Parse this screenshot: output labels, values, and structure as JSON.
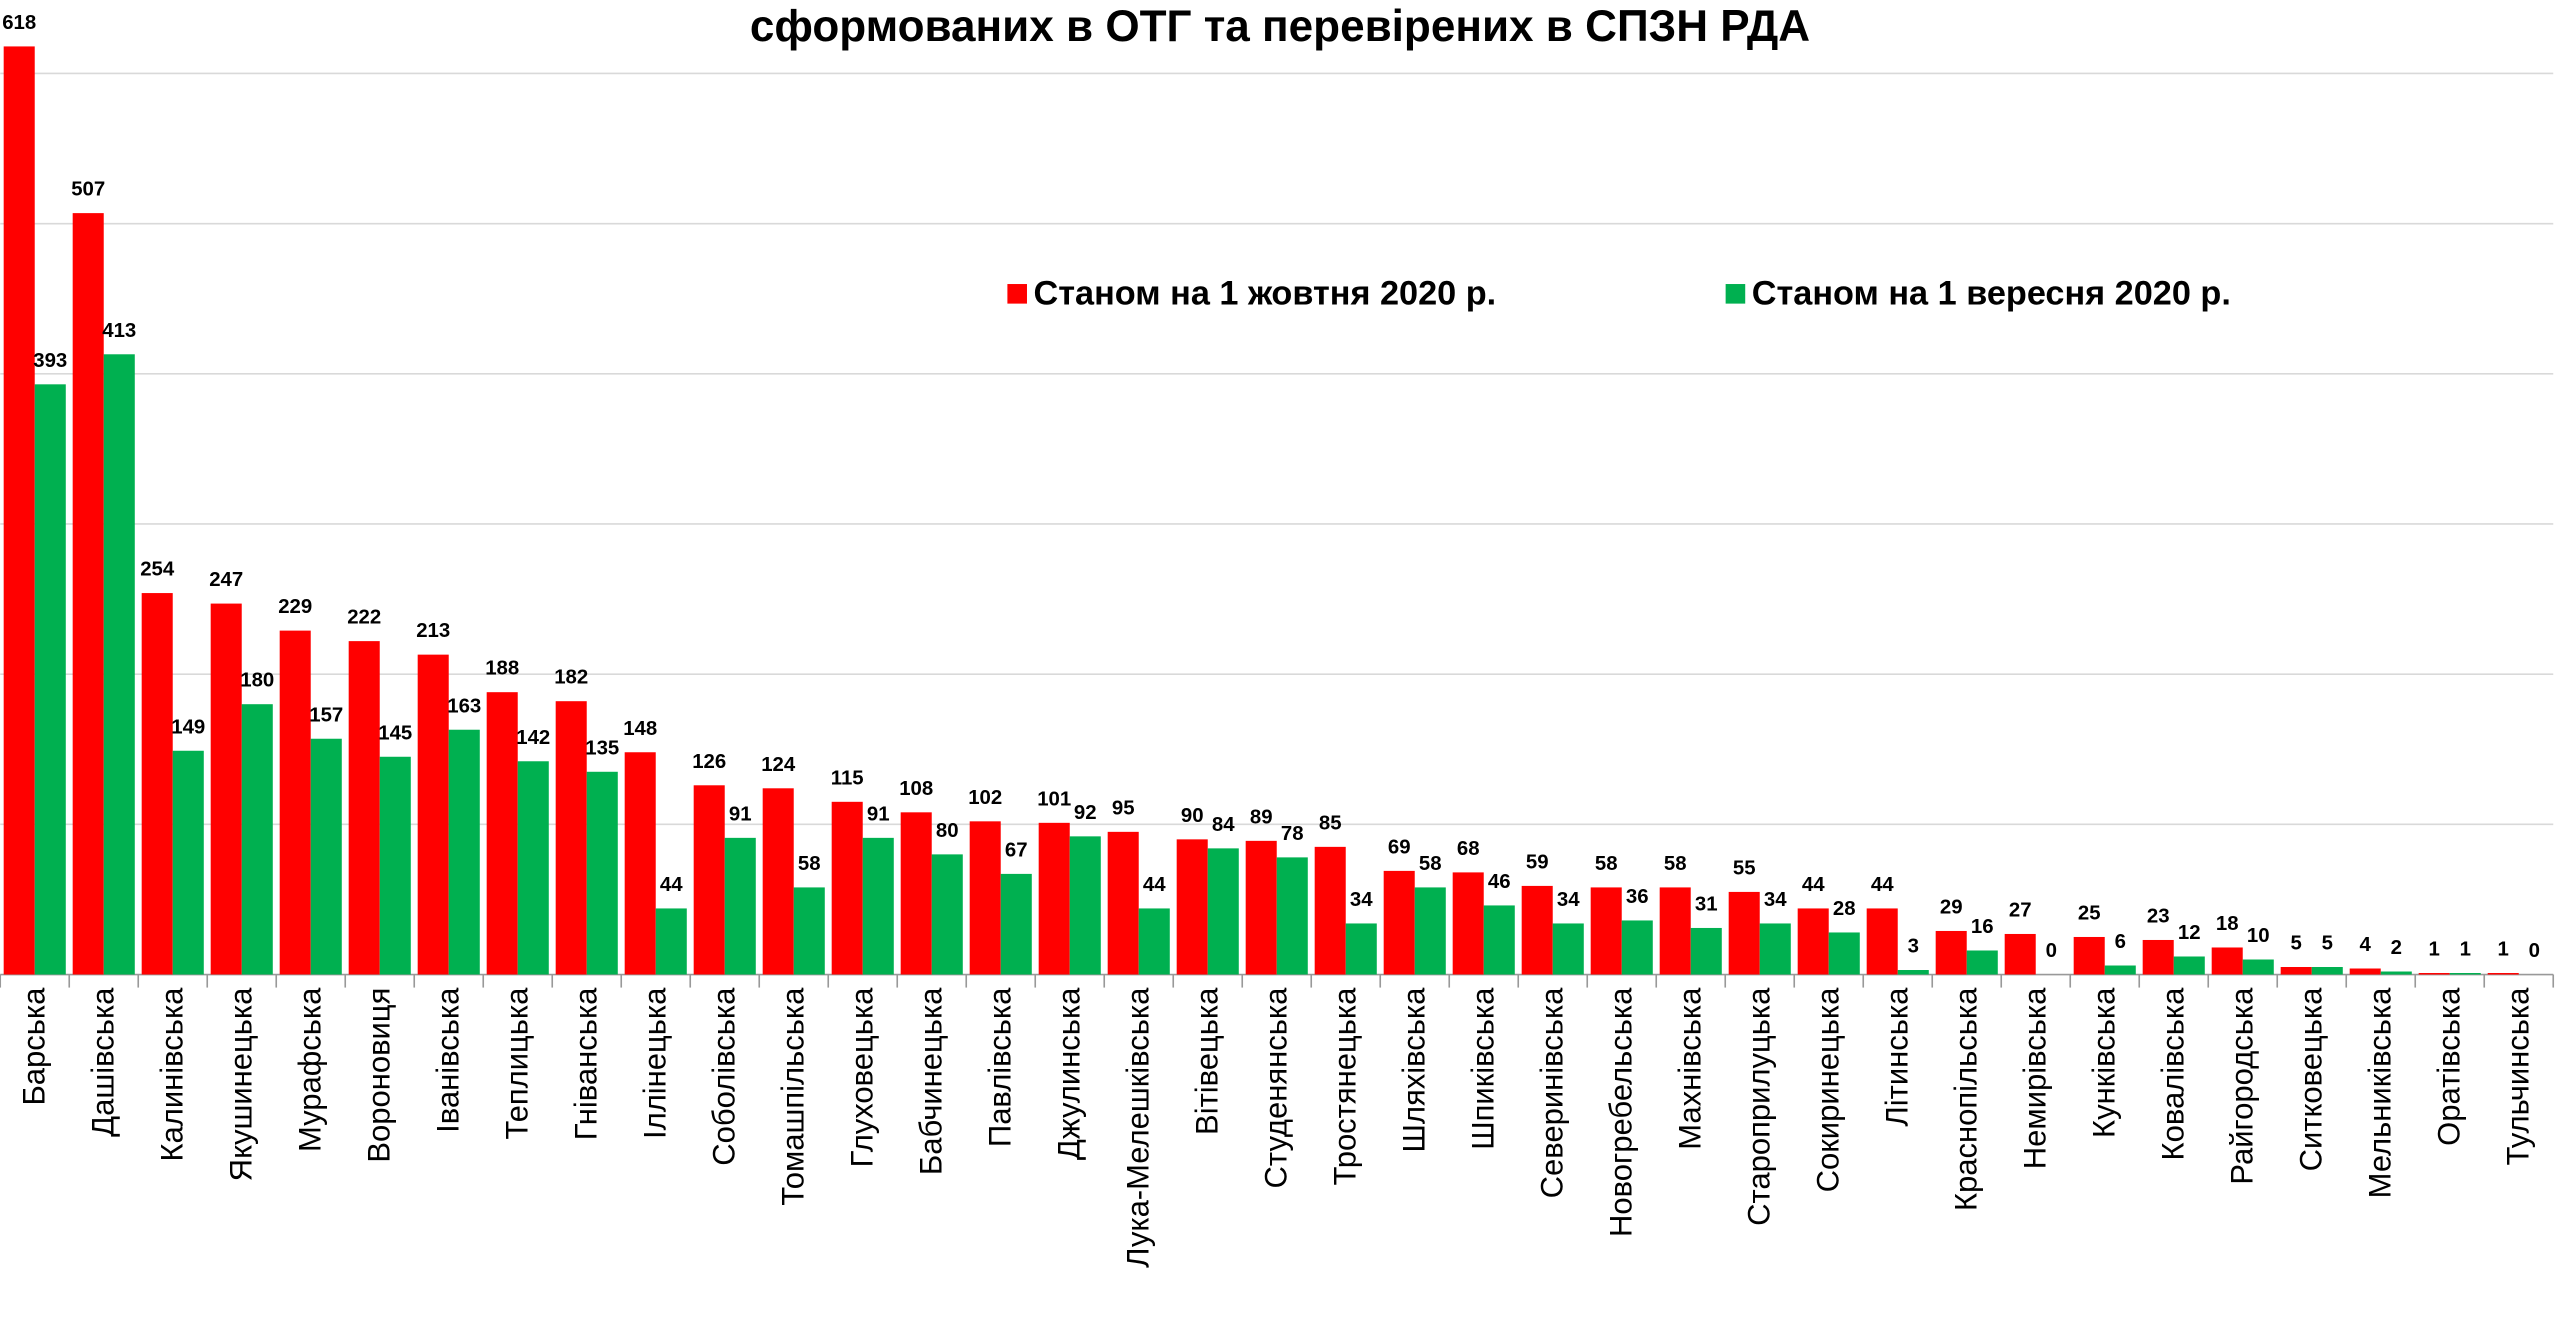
{
  "chart_data": {
    "type": "bar",
    "title": "сформованих в ОТГ та перевірених в СПЗН РДА",
    "categories": [
      "Барська",
      "Дашівська",
      "Калинівська",
      "Якушинецька",
      "Мурафська",
      "Вороновиця",
      "Іванівська",
      "Теплицька",
      "Гніванська",
      "Іллінецька",
      "Соболівська",
      "Томашпільська",
      "Глуховецька",
      "Бабчинецька",
      "Павлівська",
      "Джулинська",
      "Лука-Мелешківська",
      "Вітівецька",
      "Студенянська",
      "Тростянецька",
      "Шляхівська",
      "Шпиківська",
      "Северинівська",
      "Новогребельська",
      "Махнівська",
      "Староприлуцька",
      "Сокиринецька",
      "Літинська",
      "Краснопільська",
      "Немирівська",
      "Кунківська",
      "Ковалівська",
      "Райгородська",
      "Ситковецька",
      "Мельниківська",
      "Оратівська",
      "Тульчинська"
    ],
    "series": [
      {
        "name": "Станом на 1 жовтня 2020 р.",
        "color": "#ff0000",
        "values": [
          618,
          507,
          254,
          247,
          229,
          222,
          213,
          188,
          182,
          148,
          126,
          124,
          115,
          108,
          102,
          101,
          95,
          90,
          89,
          85,
          69,
          68,
          59,
          58,
          58,
          55,
          44,
          44,
          29,
          27,
          25,
          23,
          18,
          5,
          4,
          1,
          1
        ]
      },
      {
        "name": "Станом на 1 вересня 2020 р.",
        "color": "#00b050",
        "values": [
          393,
          413,
          149,
          180,
          157,
          145,
          163,
          142,
          135,
          44,
          91,
          58,
          91,
          80,
          67,
          92,
          44,
          84,
          78,
          34,
          58,
          46,
          34,
          36,
          31,
          34,
          28,
          3,
          16,
          0,
          6,
          12,
          10,
          5,
          2,
          1,
          0
        ]
      }
    ],
    "ylim": [
      0,
      650
    ],
    "yticks": [
      0,
      100,
      200,
      300,
      400,
      500,
      600
    ],
    "grid": true
  }
}
